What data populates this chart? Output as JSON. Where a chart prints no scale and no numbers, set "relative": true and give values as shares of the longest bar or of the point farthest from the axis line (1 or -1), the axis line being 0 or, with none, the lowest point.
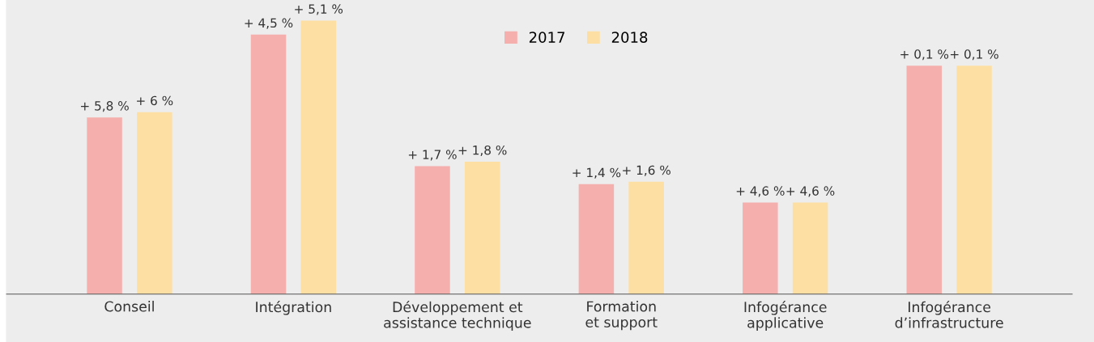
{
  "chart_data": {
    "type": "bar",
    "relative": true,
    "categories": [
      "Conseil",
      "Intégration",
      "Développement et\nassistance technique",
      "Formation\net support",
      "Infogérance\napplicative",
      "Infogérance\nd’infrastructure"
    ],
    "series": [
      {
        "name": "2017",
        "color": "#f5b0ae",
        "values": [
          0.646,
          0.949,
          0.468,
          0.402,
          0.335,
          0.835
        ]
      },
      {
        "name": "2018",
        "color": "#fddfa4",
        "values": [
          0.665,
          1.0,
          0.484,
          0.411,
          0.335,
          0.835
        ]
      }
    ],
    "annotations": [
      "+ 5,8 %",
      "+ 6 %",
      "+ 4,5 %",
      "+ 5,1 %",
      "+ 1,7 %",
      "+ 1,8 %",
      "+ 1,4 %",
      "+ 1,6 %",
      "+ 4,6 %",
      "+ 4,6 %",
      "+ 0,1 %",
      "+ 0,1 %"
    ],
    "legend": "top",
    "grid": false
  }
}
